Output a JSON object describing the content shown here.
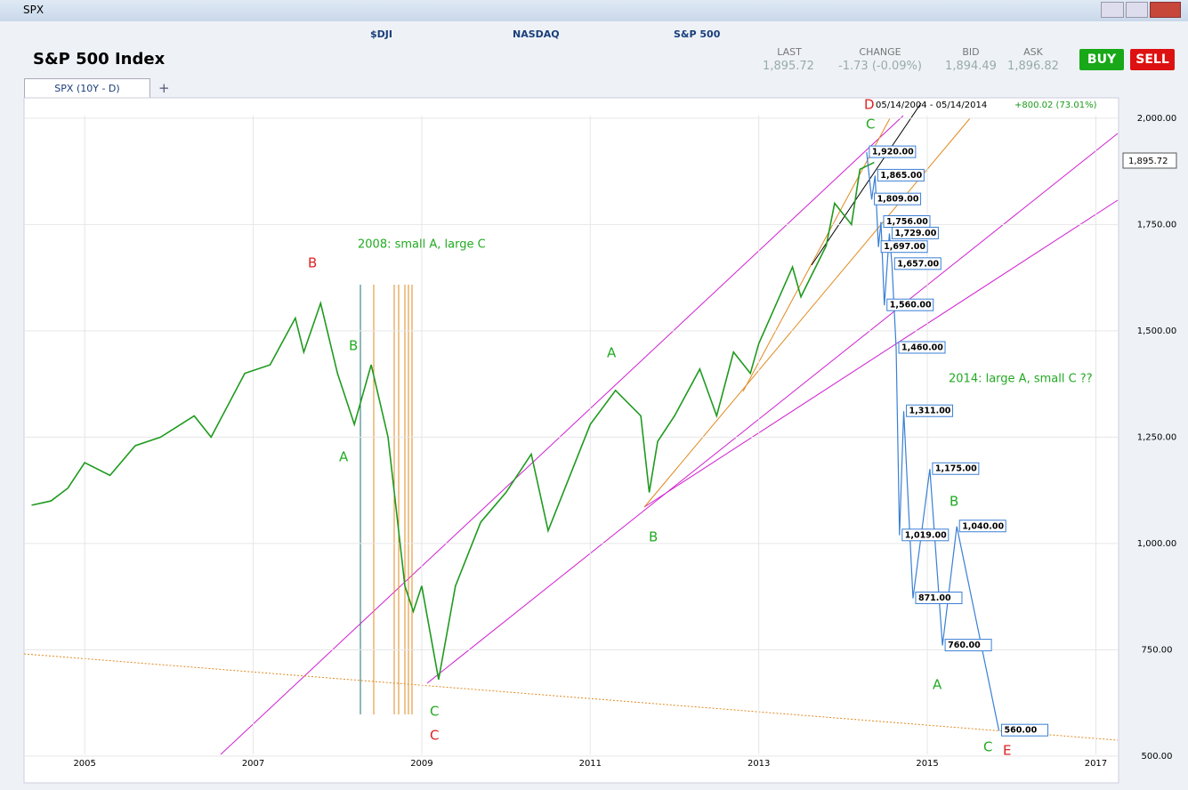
{
  "window": {
    "title": "SPX"
  },
  "ticker_bar": [
    "$DJI",
    "NASDAQ",
    "S&P 500"
  ],
  "header": {
    "title": "S&P 500 Index"
  },
  "quote": {
    "last_label": "LAST",
    "last": "1,895.72",
    "change_label": "CHANGE",
    "change": "-1.73 (-0.09%)",
    "bid_label": "BID",
    "bid": "1,894.49",
    "ask_label": "ASK",
    "ask": "1,896.82"
  },
  "buttons": [
    "BUY",
    "SELL"
  ],
  "tabs": [
    "SPX (10Y - D)",
    "+"
  ],
  "chart_data": {
    "type": "line",
    "range_text": "05/14/2004 - 05/14/2014",
    "change_text": "+800.02 (73.01%)",
    "xlim": [
      2004.28,
      2017.27
    ],
    "xticks": [
      2005,
      2007,
      2009,
      2011,
      2013,
      2015,
      2017
    ],
    "ylim": [
      483,
      2006
    ],
    "yticks": [
      {
        "value": 500,
        "label": "500.00"
      },
      {
        "value": 750,
        "label": "750.00"
      },
      {
        "value": 1000,
        "label": "1,000.00"
      },
      {
        "value": 1250,
        "label": "1,250.00"
      },
      {
        "value": 1500,
        "label": "1,500.00"
      },
      {
        "value": 1750,
        "label": "1,750.00"
      },
      {
        "value": 2000,
        "label": "2,000.00"
      }
    ],
    "grid": true,
    "series": [
      {
        "color": "#1f9a1f",
        "x": [
          2004.37,
          2004.6,
          2004.8,
          2005.0,
          2005.3,
          2005.6,
          2005.9,
          2006.3,
          2006.5,
          2006.9,
          2007.2,
          2007.5,
          2007.6,
          2007.8,
          2008.0,
          2008.2,
          2008.4,
          2008.6,
          2008.8,
          2008.9,
          2009.0,
          2009.2,
          2009.4,
          2009.7,
          2010.0,
          2010.3,
          2010.5,
          2010.8,
          2011.0,
          2011.3,
          2011.6,
          2011.7,
          2011.8,
          2012.0,
          2012.3,
          2012.5,
          2012.7,
          2012.9,
          2013.0,
          2013.4,
          2013.5,
          2013.8,
          2013.9,
          2014.1,
          2014.2,
          2014.37
        ],
        "values": [
          1090,
          1100,
          1130,
          1190,
          1160,
          1230,
          1250,
          1300,
          1250,
          1400,
          1420,
          1530,
          1450,
          1565,
          1400,
          1280,
          1420,
          1250,
          900,
          840,
          900,
          680,
          900,
          1050,
          1120,
          1210,
          1030,
          1180,
          1280,
          1360,
          1300,
          1120,
          1240,
          1300,
          1410,
          1300,
          1450,
          1400,
          1470,
          1650,
          1580,
          1700,
          1800,
          1750,
          1880,
          1896
        ]
      },
      {
        "color": "#3a7fd5",
        "x": [
          2014.28,
          2014.34,
          2014.38,
          2014.42,
          2014.45,
          2014.49,
          2014.55,
          2014.58,
          2014.63,
          2014.67,
          2014.72,
          2014.83,
          2015.03,
          2015.18,
          2015.35,
          2015.85
        ],
        "values": [
          1920,
          1809,
          1865,
          1697,
          1756,
          1560,
          1729,
          1657,
          1460,
          1019,
          1311,
          871,
          1175,
          760,
          1040,
          560
        ],
        "value_labels": [
          "1,920.00",
          "1,809.00",
          "1,865.00",
          "1,697.00",
          "1,756.00",
          "1,560.00",
          "1,729.00",
          "1,657.00",
          "1,460.00",
          "1,019.00",
          "1,311.00",
          "871.00",
          "1,175.00",
          "760.00",
          "1,040.00",
          "560.00"
        ]
      }
    ],
    "annotations": [
      "B",
      "B",
      "A",
      "2008: small A, large C",
      "A",
      "B",
      "C",
      "C",
      "D",
      "C",
      "2014: large A, small C ??",
      "B",
      "A",
      "C",
      "E"
    ]
  }
}
